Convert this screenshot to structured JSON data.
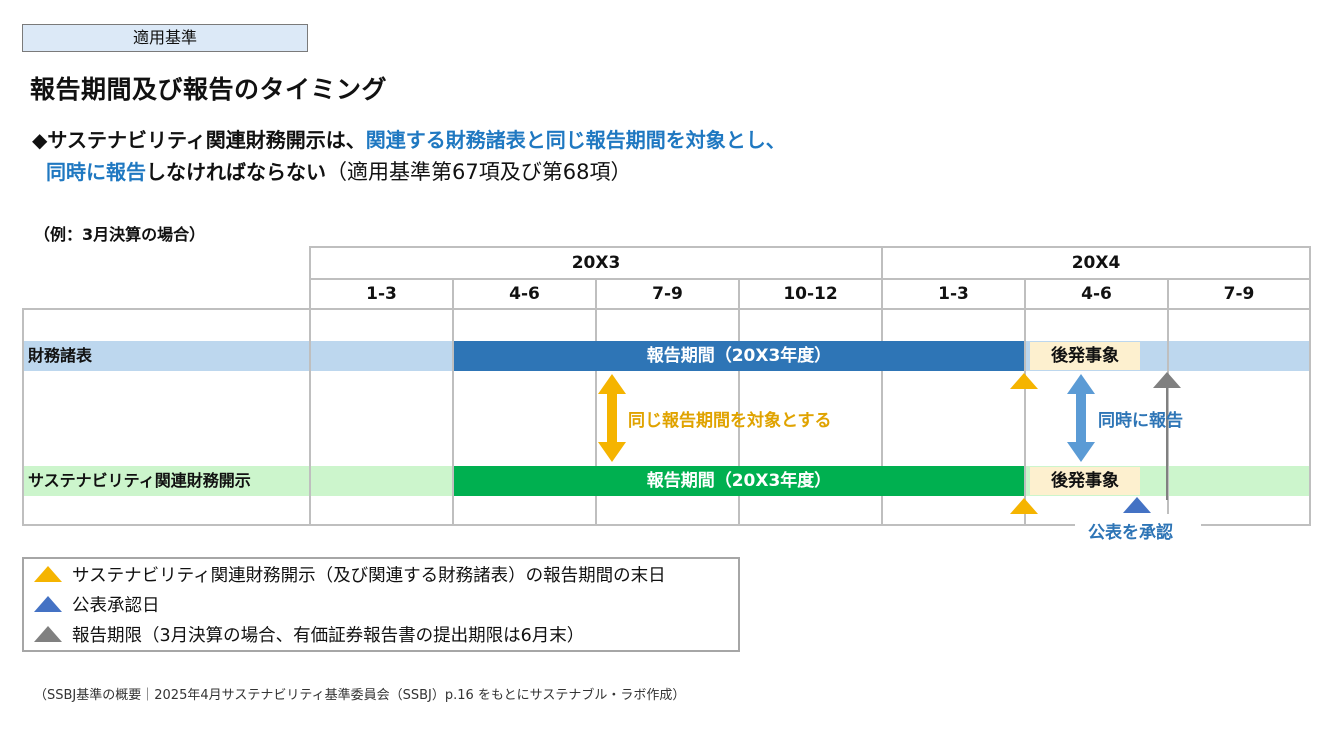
{
  "tag": "適用基準",
  "title": "報告期間及び報告のタイミング",
  "lead": {
    "line1_prefix": "◆サステナビリティ関連財務開示は、",
    "line1_highlight": "関連する財務諸表と同じ報告期間を対象とし、",
    "line2_highlight": "同時に報告",
    "line2_rest": "しなければならない",
    "line2_ref": "（適用基準第67項及び第68項）"
  },
  "example": "（例：3月決算の場合）",
  "timeline": {
    "years": [
      "20X3",
      "20X4"
    ],
    "quarters": [
      "1-3",
      "4-6",
      "7-9",
      "10-12",
      "1-3",
      "4-6",
      "7-9"
    ]
  },
  "rows": {
    "fs_label": "財務諸表",
    "sust_label": "サステナビリティ関連財務開示"
  },
  "bars": {
    "fs_period": "報告期間（20X3年度）",
    "sust_period": "報告期間（20X3年度）",
    "fs_subsequent": "後発事象",
    "sust_subsequent": "後発事象"
  },
  "annotations": {
    "same_period": "同じ報告期間を対象とする",
    "simultaneous": "同時に報告",
    "approval": "公表を承認"
  },
  "legend": [
    {
      "icon": "triangle-yellow",
      "text": "サステナビリティ関連財務開示（及び関連する財務諸表）の報告期間の末日"
    },
    {
      "icon": "triangle-blue",
      "text": "公表承認日"
    },
    {
      "icon": "triangle-gray",
      "text": "報告期限（3月決算の場合、有価証券報告書の提出期限は6月末）"
    }
  ],
  "source": "（SSBJ基準の概要｜2025年4月サステナビリティ基準委員会（SSBJ）p.16 をもとにサステナブル・ラボ作成）",
  "colors": {
    "fs_band": "#bdd7ee",
    "sust_band": "#ccf5cc",
    "fs_bar": "#2e75b6",
    "sust_bar": "#00b050",
    "subsequent": "#fdf0cf",
    "accent_blue": "#1f78c1",
    "arrow_yellow": "#f5b400",
    "arrow_blue": "#5b9bd5",
    "triangle_gray": "#808080"
  }
}
